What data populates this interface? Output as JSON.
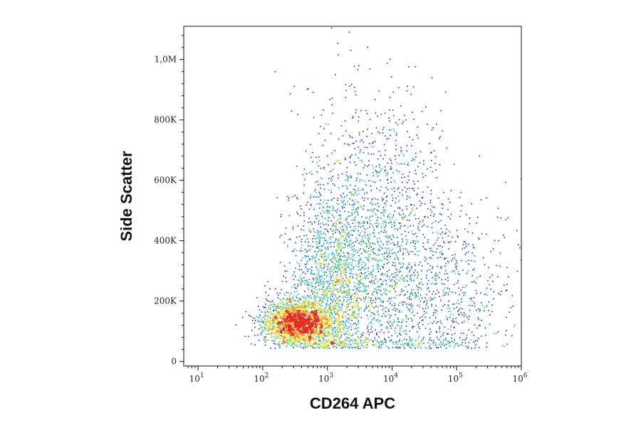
{
  "chart_data": {
    "type": "scatter",
    "title": "",
    "xlabel": "CD264 APC",
    "ylabel": "Side Scatter",
    "x_scale": "log",
    "xlim": [
      6,
      1000000
    ],
    "ylim": [
      -15000,
      1110000
    ],
    "grid": false,
    "color_scheme": "density (blue low → green → yellow → red high)",
    "x_ticks": [
      {
        "value": 10,
        "base": "10",
        "exp": "1"
      },
      {
        "value": 100,
        "base": "10",
        "exp": "2"
      },
      {
        "value": 1000,
        "base": "10",
        "exp": "3"
      },
      {
        "value": 10000,
        "base": "10",
        "exp": "4"
      },
      {
        "value": 100000,
        "base": "10",
        "exp": "5"
      },
      {
        "value": 1000000,
        "base": "10",
        "exp": "6"
      }
    ],
    "y_ticks": [
      {
        "value": 0,
        "label": "0"
      },
      {
        "value": 200000,
        "label": "200K"
      },
      {
        "value": 400000,
        "label": "400K"
      },
      {
        "value": 600000,
        "label": "600K"
      },
      {
        "value": 800000,
        "label": "800K"
      },
      {
        "value": 1000000,
        "label": "1,0M"
      }
    ],
    "populations": [
      {
        "x_center": 350,
        "x_spread_log10": 0.28,
        "y_center": 130000,
        "y_spread": 35000,
        "count": 2200
      },
      {
        "x_center": 1200,
        "x_spread_log10": 0.35,
        "y_center": 250000,
        "y_spread": 150000,
        "count": 1600
      },
      {
        "x_center": 5000,
        "x_spread_log10": 0.55,
        "y_center": 420000,
        "y_spread": 230000,
        "count": 1500
      },
      {
        "x_center": 40000,
        "x_spread_log10": 0.55,
        "y_center": 230000,
        "y_spread": 150000,
        "count": 900
      }
    ]
  }
}
